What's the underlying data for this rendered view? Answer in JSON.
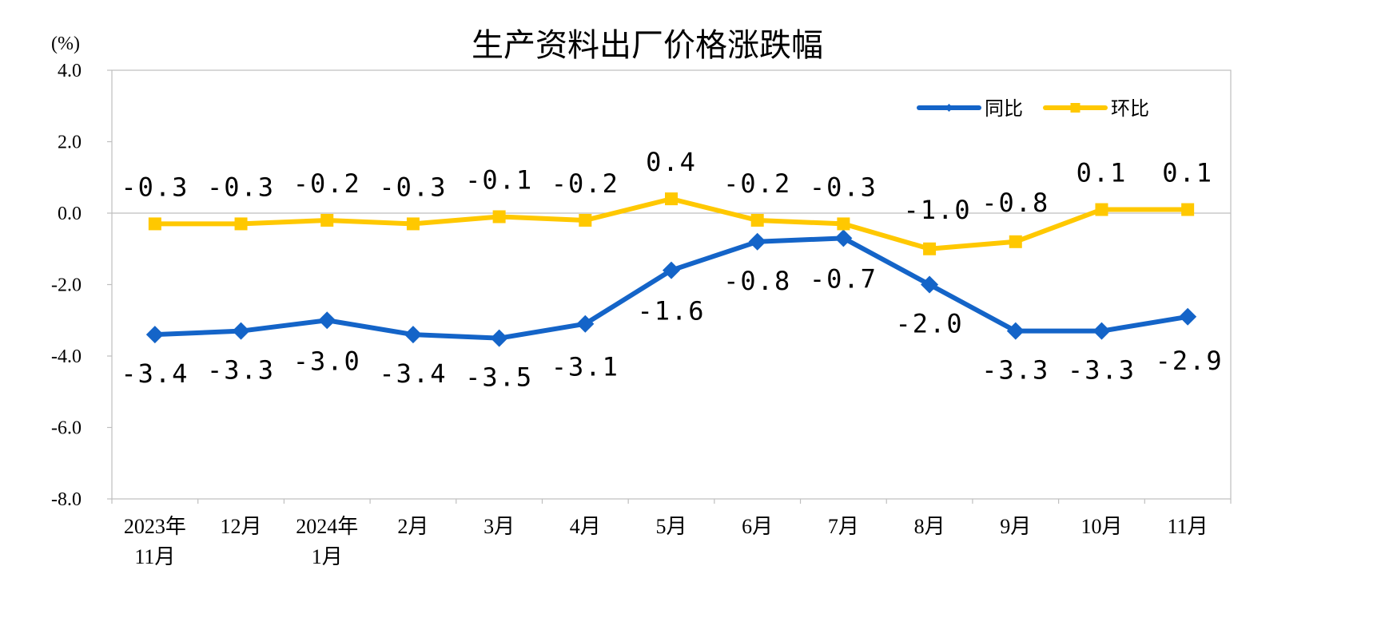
{
  "chart_data": {
    "type": "line",
    "title": "生产资料出厂价格涨跌幅",
    "unit_label": "(%)",
    "ylim": [
      -8.0,
      4.0
    ],
    "yticks": [
      4.0,
      2.0,
      0.0,
      -2.0,
      -4.0,
      -6.0,
      -8.0
    ],
    "ytick_labels": [
      "4.0",
      "2.0",
      "0.0",
      "-2.0",
      "-4.0",
      "-6.0",
      "-8.0"
    ],
    "categories": [
      [
        "2023年",
        "11月"
      ],
      [
        "12月"
      ],
      [
        "2024年",
        "1月"
      ],
      [
        "2月"
      ],
      [
        "3月"
      ],
      [
        "4月"
      ],
      [
        "5月"
      ],
      [
        "6月"
      ],
      [
        "7月"
      ],
      [
        "8月"
      ],
      [
        "9月"
      ],
      [
        "10月"
      ],
      [
        "11月"
      ]
    ],
    "grid": false,
    "legend_position": "top-right",
    "series": [
      {
        "name": "同比",
        "color": "#1464C8",
        "marker": "diamond",
        "values": [
          -3.4,
          -3.3,
          -3.0,
          -3.4,
          -3.5,
          -3.1,
          -1.6,
          -0.8,
          -0.7,
          -2.0,
          -3.3,
          -3.3,
          -2.9
        ],
        "labels": [
          "-3.4",
          "-3.3",
          "-3.0",
          "-3.4",
          "-3.5",
          "-3.1",
          "-1.6",
          "-0.8",
          "-0.7",
          "-2.0",
          "-3.3",
          "-3.3",
          "-2.9"
        ]
      },
      {
        "name": "环比",
        "color": "#FFC800",
        "marker": "square",
        "values": [
          -0.3,
          -0.3,
          -0.2,
          -0.3,
          -0.1,
          -0.2,
          0.4,
          -0.2,
          -0.3,
          -1.0,
          -0.8,
          0.1,
          0.1
        ],
        "labels": [
          "-0.3",
          "-0.3",
          "-0.2",
          "-0.3",
          "-0.1",
          "-0.2",
          "0.4",
          "-0.2",
          "-0.3",
          "-1.0",
          "-0.8",
          "0.1",
          "0.1"
        ]
      }
    ]
  }
}
